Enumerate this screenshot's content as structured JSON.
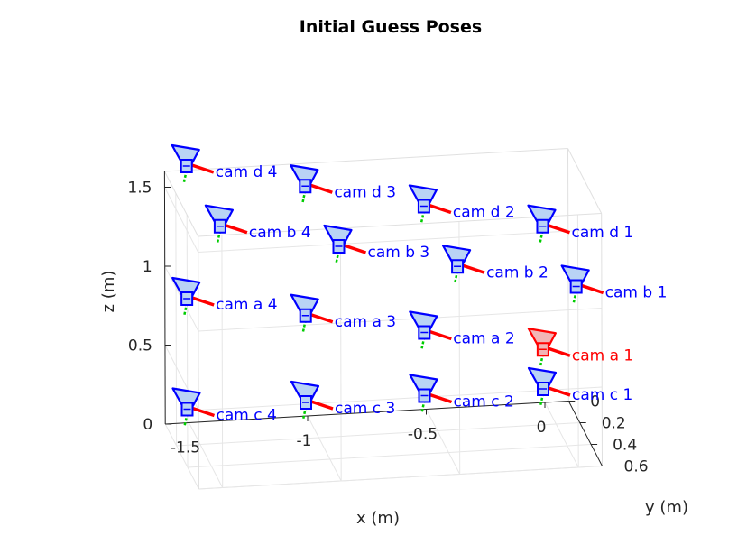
{
  "chart_data": {
    "type": "scatter",
    "title": "Initial Guess Poses",
    "xlabel": "x (m)",
    "ylabel": "y (m)",
    "zlabel": "z (m)",
    "xlim": [
      -1.6,
      0.1
    ],
    "ylim": [
      0,
      0.6
    ],
    "zlim": [
      0,
      1.6
    ],
    "x_ticks": [
      "-1.5",
      "-1",
      "-0.5",
      "0"
    ],
    "y_ticks": [
      "0",
      "0.2",
      "0.4",
      "0.6"
    ],
    "z_ticks": [
      "0",
      "0.5",
      "1",
      "1.5"
    ],
    "grid": true,
    "colors": {
      "reference": "#ff0000",
      "camera": "#0000ff",
      "x_axis": "#ff0000",
      "y_axis": "#00cc00"
    },
    "cameras": [
      {
        "label": "cam a 1",
        "x": 0.0,
        "y": 0.0,
        "z": 0.25,
        "reference": true
      },
      {
        "label": "cam a 2",
        "x": -0.5,
        "y": 0.0,
        "z": 0.4,
        "reference": false
      },
      {
        "label": "cam a 3",
        "x": -1.0,
        "y": 0.0,
        "z": 0.55,
        "reference": false
      },
      {
        "label": "cam a 4",
        "x": -1.5,
        "y": 0.0,
        "z": 0.7,
        "reference": false
      },
      {
        "label": "cam c 1",
        "x": 0.0,
        "y": 0.0,
        "z": 0.0,
        "reference": false
      },
      {
        "label": "cam c 2",
        "x": -0.5,
        "y": 0.0,
        "z": 0.0,
        "reference": false
      },
      {
        "label": "cam c 3",
        "x": -1.0,
        "y": 0.0,
        "z": 0.0,
        "reference": false
      },
      {
        "label": "cam c 4",
        "x": -1.5,
        "y": 0.0,
        "z": 0.0,
        "reference": false
      },
      {
        "label": "cam d 1",
        "x": 0.0,
        "y": 0.0,
        "z": 1.03,
        "reference": false
      },
      {
        "label": "cam d 2",
        "x": -0.5,
        "y": 0.0,
        "z": 1.2,
        "reference": false
      },
      {
        "label": "cam d 3",
        "x": -1.0,
        "y": 0.0,
        "z": 1.37,
        "reference": false
      },
      {
        "label": "cam d 4",
        "x": -1.5,
        "y": 0.0,
        "z": 1.54,
        "reference": false
      },
      {
        "label": "cam b 1",
        "x": 0.0,
        "y": 0.6,
        "z": 1.06,
        "reference": false
      },
      {
        "label": "cam b 2",
        "x": -0.5,
        "y": 0.6,
        "z": 1.23,
        "reference": false
      },
      {
        "label": "cam b 3",
        "x": -1.0,
        "y": 0.6,
        "z": 1.4,
        "reference": false
      },
      {
        "label": "cam b 4",
        "x": -1.5,
        "y": 0.6,
        "z": 1.57,
        "reference": false
      }
    ]
  }
}
